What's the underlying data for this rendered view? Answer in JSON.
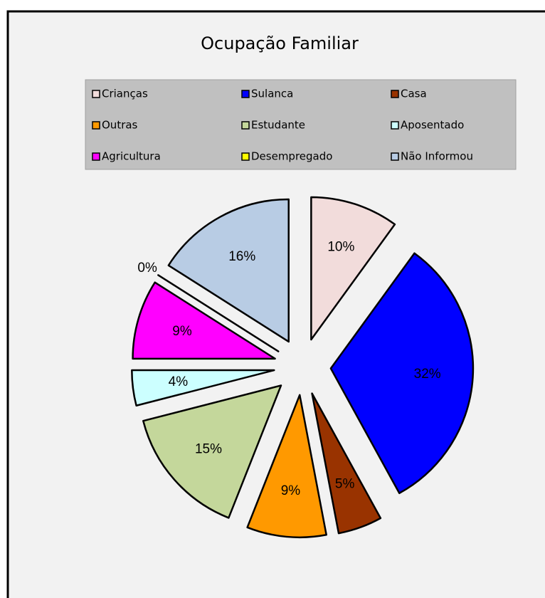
{
  "chart_data": {
    "type": "pie",
    "title": "Ocupação Familiar",
    "categories": [
      "Crianças",
      "Sulanca",
      "Casa",
      "Outras",
      "Estudante",
      "Aposentado",
      "Agricultura",
      "Desempregado",
      "Não Informou"
    ],
    "values": [
      10,
      32,
      5,
      9,
      15,
      4,
      9,
      0,
      16
    ],
    "value_labels": [
      "10%",
      "32%",
      "5%",
      "9%",
      "15%",
      "4%",
      "9%",
      "0%",
      "16%"
    ],
    "colors": [
      "#f2dcdb",
      "#0000ff",
      "#993300",
      "#ff9900",
      "#c4d79b",
      "#ccffff",
      "#ff00ff",
      "#ffff00",
      "#b8cce4"
    ],
    "legend": "top"
  }
}
